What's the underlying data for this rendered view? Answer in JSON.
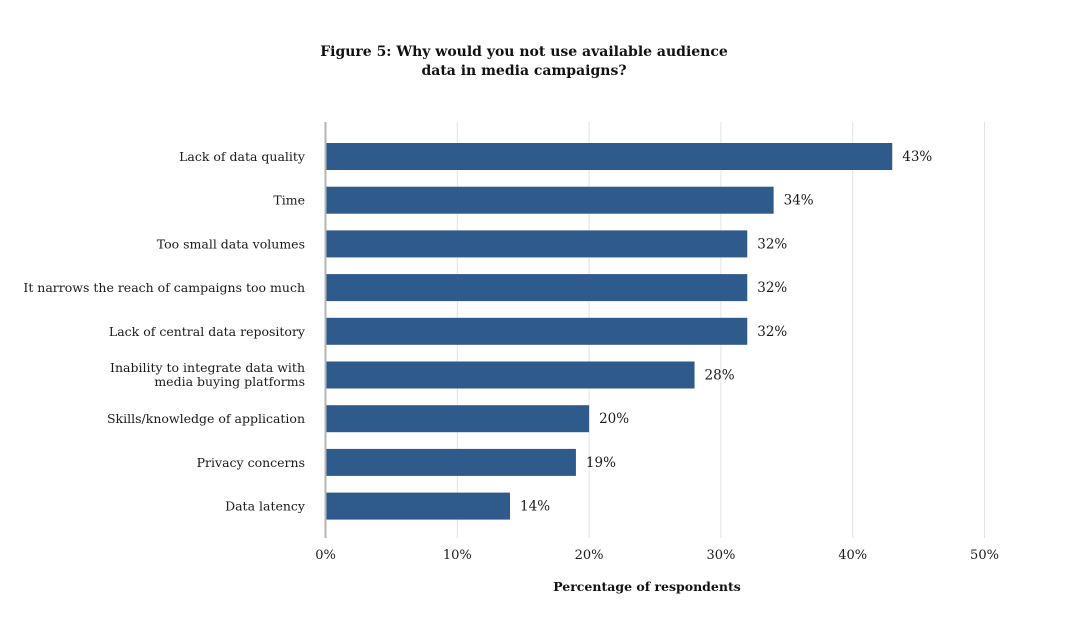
{
  "chart_data": {
    "type": "bar",
    "orientation": "horizontal",
    "title": "Figure 5: Why would you not use available audience data in media campaigns?",
    "title_lines": [
      "Figure 5: Why would you not use available audience",
      "data in media campaigns?"
    ],
    "categories": [
      "Lack of data quality",
      "Time",
      "Too small data volumes",
      "It narrows the reach of campaigns too much",
      "Lack of central data repository",
      "Inability to integrate data with media buying platforms",
      "Skills/knowledge of application",
      "Privacy concerns",
      "Data latency"
    ],
    "category_lines": [
      [
        "Lack of data quality"
      ],
      [
        "Time"
      ],
      [
        "Too small data volumes"
      ],
      [
        "It narrows the reach of campaigns too much"
      ],
      [
        "Lack of central data repository"
      ],
      [
        "Inability to integrate data with",
        "media buying platforms"
      ],
      [
        "Skills/knowledge of application"
      ],
      [
        "Privacy concerns"
      ],
      [
        "Data latency"
      ]
    ],
    "values": [
      43,
      34,
      32,
      32,
      32,
      28,
      20,
      19,
      14
    ],
    "value_labels": [
      "43%",
      "34%",
      "32%",
      "32%",
      "32%",
      "28%",
      "20%",
      "19%",
      "14%"
    ],
    "xlabel": "Percentage of respondents",
    "ylabel": "",
    "xlim": [
      0,
      50
    ],
    "xticks": [
      0,
      10,
      20,
      30,
      40,
      50
    ],
    "xtick_labels": [
      "0%",
      "10%",
      "20%",
      "30%",
      "40%",
      "50%"
    ],
    "grid": true,
    "legend": "none",
    "colors": {
      "bar": "#2e5a8c",
      "grid": "#e3e3e3",
      "axis": "#b5b5b5"
    }
  }
}
